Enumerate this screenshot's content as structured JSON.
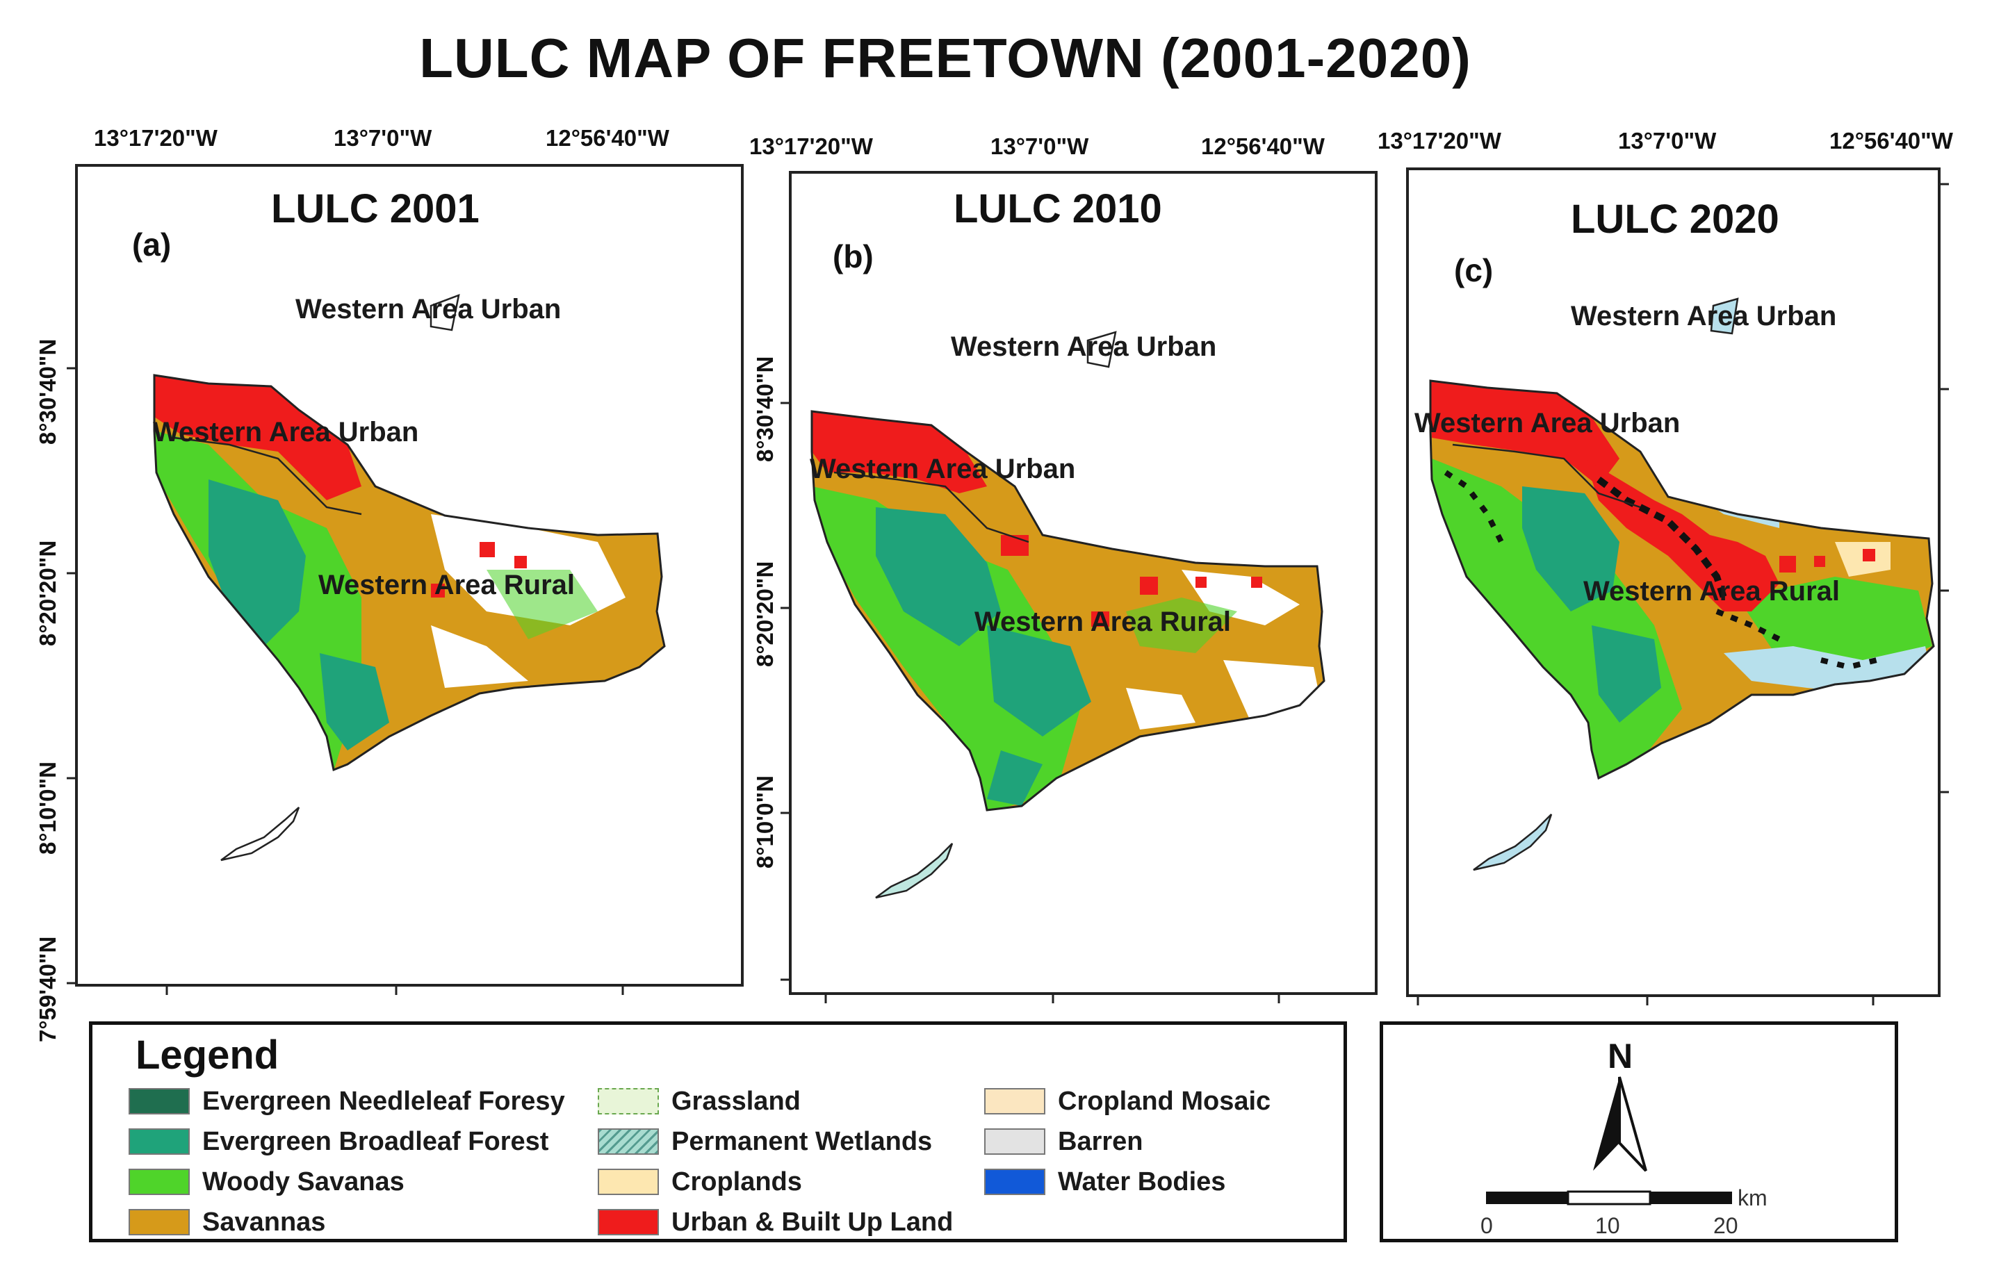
{
  "title": "LULC MAP OF FREETOWN (2001-2020)",
  "panels": [
    {
      "title": "LULC 2001",
      "letter": "(a)",
      "lon_ticks": [
        "13°17'20\"W",
        "13°7'0\"W",
        "12°56'40\"W"
      ],
      "lat_ticks": [
        "8°30'40\"N",
        "8°20'20\"N",
        "8°10'0\"N",
        "7°59'40\"N"
      ],
      "labels": [
        "Western Area Urban",
        "Western Area Urban",
        "Western Area Rural"
      ]
    },
    {
      "title": "LULC 2010",
      "letter": "(b)",
      "lon_ticks": [
        "13°17'20\"W",
        "13°7'0\"W",
        "12°56'40\"W"
      ],
      "lat_ticks": [
        "8°30'40\"N",
        "8°20'20\"N",
        "8°10'0\"N"
      ],
      "labels": [
        "Western Area Urban",
        "Western Area Urban",
        "Western Area Rural"
      ]
    },
    {
      "title": "LULC 2020",
      "letter": "(c)",
      "lon_ticks": [
        "13°17'20\"W",
        "13°7'0\"W",
        "12°56'40\"W"
      ],
      "lat_ticks": [],
      "labels": [
        "Western Area Urban",
        "Western Area Urban",
        "Western Area Rural"
      ]
    }
  ],
  "legend": {
    "title": "Legend",
    "items": [
      {
        "label": "Evergreen Needleleaf Foresy",
        "color": "#1f6e4f"
      },
      {
        "label": "Evergreen Broadleaf Forest",
        "color": "#1fa37a"
      },
      {
        "label": "Woody Savanas",
        "color": "#4fd42a"
      },
      {
        "label": "Savannas",
        "color": "#d69a1a"
      },
      {
        "label": "Grassland",
        "color": "#e8f5d8"
      },
      {
        "label": "Permanent Wetlands",
        "color": "#a9dcd0"
      },
      {
        "label": "Croplands",
        "color": "#fde7b0"
      },
      {
        "label": "Urban & Built Up Land",
        "color": "#ef1c1c"
      },
      {
        "label": "Cropland Mosaic",
        "color": "#fbe6c0"
      },
      {
        "label": "Barren",
        "color": "#e3e3e3"
      },
      {
        "label": "Water Bodies",
        "color": "#1159d8"
      }
    ]
  },
  "north_arrow": {
    "label": "N"
  },
  "scale_bar": {
    "unit": "km",
    "ticks": [
      "0",
      "10",
      "20"
    ]
  }
}
